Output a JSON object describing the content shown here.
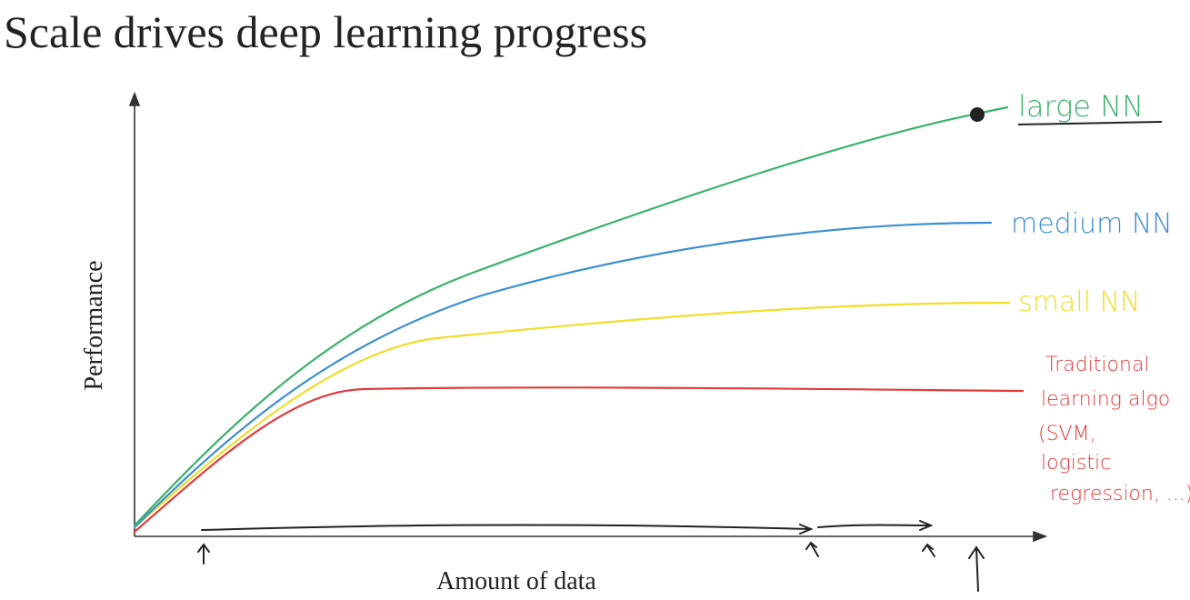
{
  "header": {
    "title": "Scale drives deep learning progress"
  },
  "axes": {
    "y_label": "Performance",
    "x_label": "Amount of data"
  },
  "curves": [
    {
      "label": "large NN"
    },
    {
      "label": "medium NN"
    },
    {
      "label": "small NN"
    },
    {
      "label_lines": [
        "Traditional",
        "learning algo",
        "(SVM,",
        "logistic",
        "regression, ...)"
      ]
    }
  ]
}
